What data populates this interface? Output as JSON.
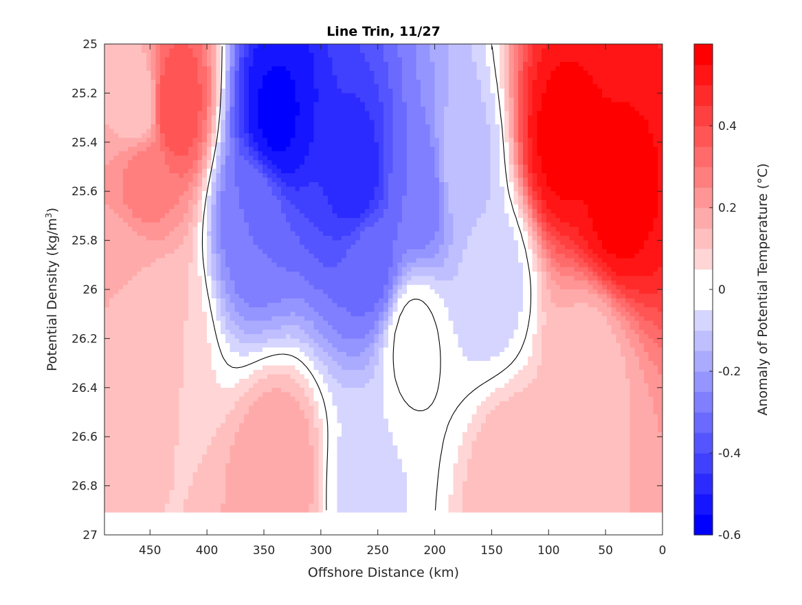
{
  "chart_data": {
    "type": "heatmap",
    "subtype": "filled-contour",
    "title": "Line Trin, 11/27",
    "xlabel": "Offshore Distance (km)",
    "ylabel_prefix": "Potential Density (kg/m",
    "ylabel_sup": "3",
    "ylabel_suffix": ")",
    "colorbar_label": "Anomaly of Potential Temperature (°C)",
    "xlim": [
      490,
      0
    ],
    "x_reversed": true,
    "ylim": [
      25,
      27
    ],
    "y_reversed": true,
    "xticks": [
      450,
      400,
      350,
      300,
      250,
      200,
      150,
      100,
      50,
      0
    ],
    "yticks": [
      25,
      25.2,
      25.4,
      25.6,
      25.8,
      26,
      26.2,
      26.4,
      26.6,
      26.8,
      27
    ],
    "ytick_labels": [
      "25",
      "25.2",
      "25.4",
      "25.6",
      "25.8",
      "26",
      "26.2",
      "26.4",
      "26.6",
      "26.8",
      "27"
    ],
    "colorbar_range": [
      -0.6,
      0.6
    ],
    "colorbar_ticks": [
      -0.6,
      -0.4,
      -0.2,
      0,
      0.2,
      0.4
    ],
    "colorbar_tick_labels": [
      "-0.6",
      "-0.4",
      "-0.2",
      "0",
      "0.2",
      "0.4"
    ],
    "colormap": "blue-white-red",
    "color_negative": "#0000ff",
    "color_zero": "#ffffff",
    "color_positive": "#ff0000",
    "zero_contour_drawn": true,
    "data_extent_density": [
      25,
      26.9
    ],
    "features": [
      {
        "x": 430,
        "y": 25.25,
        "value": 0.4
      },
      {
        "x": 460,
        "y": 25.25,
        "value": 0.1
      },
      {
        "x": 455,
        "y": 25.55,
        "value": 0.28
      },
      {
        "x": 470,
        "y": 25.95,
        "value": 0.15
      },
      {
        "x": 440,
        "y": 26.15,
        "value": 0.1
      },
      {
        "x": 340,
        "y": 25.3,
        "value": -0.56
      },
      {
        "x": 360,
        "y": 25.7,
        "value": -0.3
      },
      {
        "x": 268,
        "y": 25.55,
        "value": -0.48
      },
      {
        "x": 255,
        "y": 25.9,
        "value": -0.32
      },
      {
        "x": 215,
        "y": 25.6,
        "value": -0.3
      },
      {
        "x": 175,
        "y": 25.5,
        "value": -0.12
      },
      {
        "x": 150,
        "y": 25.95,
        "value": -0.08
      },
      {
        "x": 88,
        "y": 25.4,
        "value": 0.57
      },
      {
        "x": 40,
        "y": 25.65,
        "value": 0.57
      },
      {
        "x": 65,
        "y": 26.3,
        "value": 0.12
      },
      {
        "x": 335,
        "y": 26.75,
        "value": 0.2
      },
      {
        "x": 130,
        "y": 26.8,
        "value": 0.15
      },
      {
        "x": 265,
        "y": 26.8,
        "value": -0.06
      },
      {
        "x": 220,
        "y": 26.2,
        "value": 0.02
      }
    ]
  }
}
